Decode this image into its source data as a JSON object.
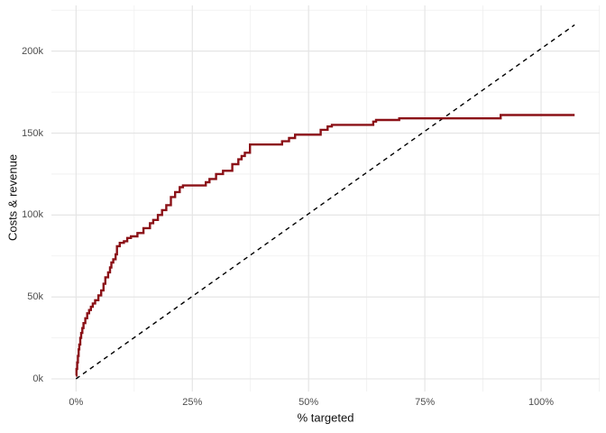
{
  "figure": {
    "background": "#ffffff",
    "grid_major_color": "#e3e3e3",
    "grid_minor_color": "#efefef",
    "tick_label_color": "#4d4d4d",
    "title_color": "#111111"
  },
  "chart_data": {
    "type": "line",
    "title": "",
    "xlabel": "% targeted",
    "ylabel": "Costs & revenue",
    "legend": "none",
    "grid": "on",
    "xlim_pct": [
      -5.3,
      112.6
    ],
    "ylim_k": [
      -7.7,
      227.9
    ],
    "x_ticks": [
      {
        "value": 0,
        "label": "0%"
      },
      {
        "value": 25,
        "label": "25%"
      },
      {
        "value": 50,
        "label": "50%"
      },
      {
        "value": 75,
        "label": "75%"
      },
      {
        "value": 100,
        "label": "100%"
      }
    ],
    "y_ticks": [
      {
        "value": 0,
        "label": "0k"
      },
      {
        "value": 50,
        "label": "50k"
      },
      {
        "value": 100,
        "label": "100k"
      },
      {
        "value": 150,
        "label": "150k"
      },
      {
        "value": 200,
        "label": "200k"
      }
    ],
    "x_minor": [
      12.5,
      37.5,
      62.5,
      87.5,
      112.5
    ],
    "y_minor": [
      25,
      75,
      125,
      175,
      225
    ],
    "series": [
      {
        "name": "cumulative-revenue",
        "draw": "step",
        "color": "#8B1117",
        "stroke_width": 2.4,
        "points": [
          [
            0,
            2
          ],
          [
            0.1,
            6
          ],
          [
            0.25,
            10
          ],
          [
            0.4,
            14
          ],
          [
            0.55,
            18
          ],
          [
            0.7,
            21
          ],
          [
            0.9,
            25
          ],
          [
            1.1,
            28
          ],
          [
            1.35,
            31
          ],
          [
            1.6,
            34
          ],
          [
            2,
            37
          ],
          [
            2.4,
            40
          ],
          [
            2.8,
            42
          ],
          [
            3.2,
            44
          ],
          [
            3.6,
            46
          ],
          [
            4.1,
            48
          ],
          [
            4.8,
            51
          ],
          [
            5.4,
            54
          ],
          [
            5.9,
            58
          ],
          [
            6.3,
            62
          ],
          [
            6.9,
            65
          ],
          [
            7.3,
            68
          ],
          [
            7.6,
            71
          ],
          [
            8,
            73
          ],
          [
            8.5,
            76
          ],
          [
            8.8,
            81
          ],
          [
            9.4,
            83
          ],
          [
            10.3,
            84
          ],
          [
            11,
            86
          ],
          [
            11.8,
            87
          ],
          [
            13.2,
            89
          ],
          [
            14.5,
            92
          ],
          [
            15.9,
            95
          ],
          [
            16.6,
            97
          ],
          [
            17.6,
            100
          ],
          [
            18.5,
            103
          ],
          [
            19.4,
            106
          ],
          [
            20.4,
            111
          ],
          [
            21.3,
            114
          ],
          [
            22.3,
            117
          ],
          [
            23,
            118
          ],
          [
            27.4,
            118
          ],
          [
            27.9,
            120
          ],
          [
            28.7,
            122
          ],
          [
            30.1,
            125
          ],
          [
            31.6,
            127
          ],
          [
            33.6,
            131
          ],
          [
            34.9,
            134
          ],
          [
            35.6,
            136
          ],
          [
            36.3,
            138
          ],
          [
            37.4,
            143
          ],
          [
            43.8,
            143
          ],
          [
            44.3,
            145
          ],
          [
            45.8,
            147
          ],
          [
            47.1,
            149
          ],
          [
            51.9,
            149
          ],
          [
            52.6,
            152
          ],
          [
            54.1,
            154
          ],
          [
            55,
            155
          ],
          [
            63.4,
            155
          ],
          [
            63.9,
            157
          ],
          [
            64.5,
            158
          ],
          [
            69.1,
            158
          ],
          [
            69.5,
            159
          ],
          [
            90.8,
            159
          ],
          [
            91.3,
            161
          ],
          [
            107.2,
            161
          ]
        ]
      },
      {
        "name": "costs",
        "draw": "line",
        "color": "#000000",
        "stroke_width": 1.4,
        "dash": "5 4.5",
        "points": [
          [
            0,
            0
          ],
          [
            107.2,
            216
          ]
        ]
      }
    ]
  }
}
